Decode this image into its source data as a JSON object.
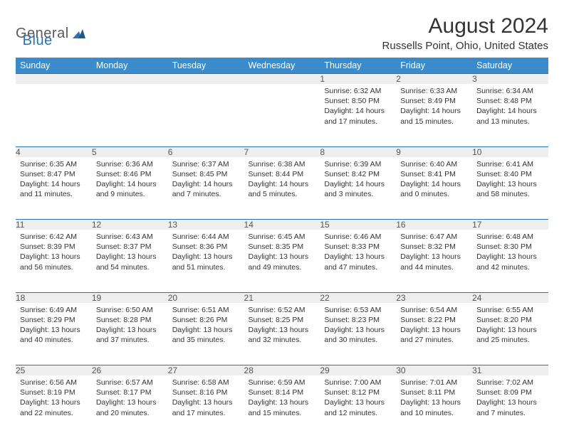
{
  "logo": {
    "text1": "General",
    "text2": "Blue"
  },
  "title": "August 2024",
  "subtitle": "Russells Point, Ohio, United States",
  "colors": {
    "header_bg": "#3b8bca",
    "header_text": "#ffffff",
    "border": "#2a72b5",
    "daynum_bg": "#eeeeee",
    "body_bg": "#ffffff",
    "text": "#333333",
    "logo_gray": "#5a5a5a",
    "logo_blue": "#2a72b5"
  },
  "day_headers": [
    "Sunday",
    "Monday",
    "Tuesday",
    "Wednesday",
    "Thursday",
    "Friday",
    "Saturday"
  ],
  "weeks": [
    [
      {
        "n": "",
        "lines": []
      },
      {
        "n": "",
        "lines": []
      },
      {
        "n": "",
        "lines": []
      },
      {
        "n": "",
        "lines": []
      },
      {
        "n": "1",
        "lines": [
          "Sunrise: 6:32 AM",
          "Sunset: 8:50 PM",
          "Daylight: 14 hours and 17 minutes."
        ]
      },
      {
        "n": "2",
        "lines": [
          "Sunrise: 6:33 AM",
          "Sunset: 8:49 PM",
          "Daylight: 14 hours and 15 minutes."
        ]
      },
      {
        "n": "3",
        "lines": [
          "Sunrise: 6:34 AM",
          "Sunset: 8:48 PM",
          "Daylight: 14 hours and 13 minutes."
        ]
      }
    ],
    [
      {
        "n": "4",
        "lines": [
          "Sunrise: 6:35 AM",
          "Sunset: 8:47 PM",
          "Daylight: 14 hours and 11 minutes."
        ]
      },
      {
        "n": "5",
        "lines": [
          "Sunrise: 6:36 AM",
          "Sunset: 8:46 PM",
          "Daylight: 14 hours and 9 minutes."
        ]
      },
      {
        "n": "6",
        "lines": [
          "Sunrise: 6:37 AM",
          "Sunset: 8:45 PM",
          "Daylight: 14 hours and 7 minutes."
        ]
      },
      {
        "n": "7",
        "lines": [
          "Sunrise: 6:38 AM",
          "Sunset: 8:44 PM",
          "Daylight: 14 hours and 5 minutes."
        ]
      },
      {
        "n": "8",
        "lines": [
          "Sunrise: 6:39 AM",
          "Sunset: 8:42 PM",
          "Daylight: 14 hours and 3 minutes."
        ]
      },
      {
        "n": "9",
        "lines": [
          "Sunrise: 6:40 AM",
          "Sunset: 8:41 PM",
          "Daylight: 14 hours and 0 minutes."
        ]
      },
      {
        "n": "10",
        "lines": [
          "Sunrise: 6:41 AM",
          "Sunset: 8:40 PM",
          "Daylight: 13 hours and 58 minutes."
        ]
      }
    ],
    [
      {
        "n": "11",
        "lines": [
          "Sunrise: 6:42 AM",
          "Sunset: 8:39 PM",
          "Daylight: 13 hours and 56 minutes."
        ]
      },
      {
        "n": "12",
        "lines": [
          "Sunrise: 6:43 AM",
          "Sunset: 8:37 PM",
          "Daylight: 13 hours and 54 minutes."
        ]
      },
      {
        "n": "13",
        "lines": [
          "Sunrise: 6:44 AM",
          "Sunset: 8:36 PM",
          "Daylight: 13 hours and 51 minutes."
        ]
      },
      {
        "n": "14",
        "lines": [
          "Sunrise: 6:45 AM",
          "Sunset: 8:35 PM",
          "Daylight: 13 hours and 49 minutes."
        ]
      },
      {
        "n": "15",
        "lines": [
          "Sunrise: 6:46 AM",
          "Sunset: 8:33 PM",
          "Daylight: 13 hours and 47 minutes."
        ]
      },
      {
        "n": "16",
        "lines": [
          "Sunrise: 6:47 AM",
          "Sunset: 8:32 PM",
          "Daylight: 13 hours and 44 minutes."
        ]
      },
      {
        "n": "17",
        "lines": [
          "Sunrise: 6:48 AM",
          "Sunset: 8:30 PM",
          "Daylight: 13 hours and 42 minutes."
        ]
      }
    ],
    [
      {
        "n": "18",
        "lines": [
          "Sunrise: 6:49 AM",
          "Sunset: 8:29 PM",
          "Daylight: 13 hours and 40 minutes."
        ]
      },
      {
        "n": "19",
        "lines": [
          "Sunrise: 6:50 AM",
          "Sunset: 8:28 PM",
          "Daylight: 13 hours and 37 minutes."
        ]
      },
      {
        "n": "20",
        "lines": [
          "Sunrise: 6:51 AM",
          "Sunset: 8:26 PM",
          "Daylight: 13 hours and 35 minutes."
        ]
      },
      {
        "n": "21",
        "lines": [
          "Sunrise: 6:52 AM",
          "Sunset: 8:25 PM",
          "Daylight: 13 hours and 32 minutes."
        ]
      },
      {
        "n": "22",
        "lines": [
          "Sunrise: 6:53 AM",
          "Sunset: 8:23 PM",
          "Daylight: 13 hours and 30 minutes."
        ]
      },
      {
        "n": "23",
        "lines": [
          "Sunrise: 6:54 AM",
          "Sunset: 8:22 PM",
          "Daylight: 13 hours and 27 minutes."
        ]
      },
      {
        "n": "24",
        "lines": [
          "Sunrise: 6:55 AM",
          "Sunset: 8:20 PM",
          "Daylight: 13 hours and 25 minutes."
        ]
      }
    ],
    [
      {
        "n": "25",
        "lines": [
          "Sunrise: 6:56 AM",
          "Sunset: 8:19 PM",
          "Daylight: 13 hours and 22 minutes."
        ]
      },
      {
        "n": "26",
        "lines": [
          "Sunrise: 6:57 AM",
          "Sunset: 8:17 PM",
          "Daylight: 13 hours and 20 minutes."
        ]
      },
      {
        "n": "27",
        "lines": [
          "Sunrise: 6:58 AM",
          "Sunset: 8:16 PM",
          "Daylight: 13 hours and 17 minutes."
        ]
      },
      {
        "n": "28",
        "lines": [
          "Sunrise: 6:59 AM",
          "Sunset: 8:14 PM",
          "Daylight: 13 hours and 15 minutes."
        ]
      },
      {
        "n": "29",
        "lines": [
          "Sunrise: 7:00 AM",
          "Sunset: 8:12 PM",
          "Daylight: 13 hours and 12 minutes."
        ]
      },
      {
        "n": "30",
        "lines": [
          "Sunrise: 7:01 AM",
          "Sunset: 8:11 PM",
          "Daylight: 13 hours and 10 minutes."
        ]
      },
      {
        "n": "31",
        "lines": [
          "Sunrise: 7:02 AM",
          "Sunset: 8:09 PM",
          "Daylight: 13 hours and 7 minutes."
        ]
      }
    ]
  ]
}
